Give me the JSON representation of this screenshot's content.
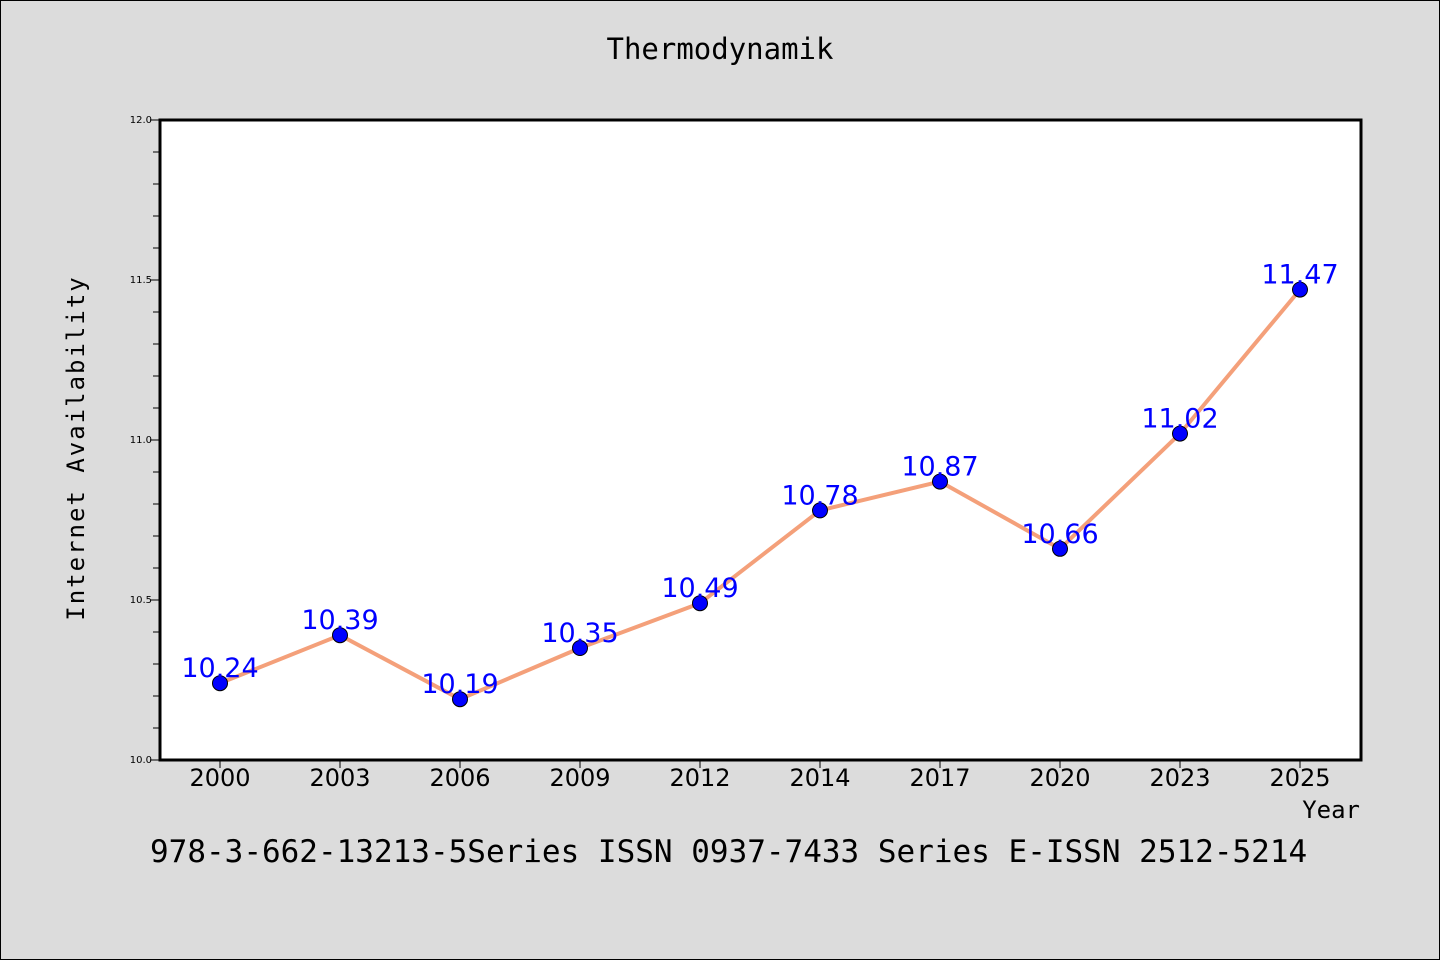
{
  "chart_data": {
    "type": "line",
    "title": "Thermodynamik",
    "xlabel": "Year",
    "ylabel": "Internet Availability",
    "categories": [
      "2000",
      "2003",
      "2006",
      "2009",
      "2012",
      "2014",
      "2017",
      "2020",
      "2023",
      "2025"
    ],
    "values": [
      10.24,
      10.39,
      10.19,
      10.35,
      10.49,
      10.78,
      10.87,
      10.66,
      11.02,
      11.47
    ],
    "value_labels": [
      "10.24",
      "10.39",
      "10.19",
      "10.35",
      "10.49",
      "10.78",
      "10.87",
      "10.66",
      "11.02",
      "11.47"
    ],
    "ylim": [
      10.0,
      12.0
    ],
    "yticks": [
      "10.0",
      "10.5",
      "11.0",
      "11.5",
      "12.0"
    ],
    "grid": false,
    "line_color": "#f4a07a",
    "marker_color": "#0000ff",
    "label_color": "#0000ff"
  },
  "footer_text": "978-3-662-13213-5Series ISSN 0937-7433 Series E-ISSN 2512-5214"
}
